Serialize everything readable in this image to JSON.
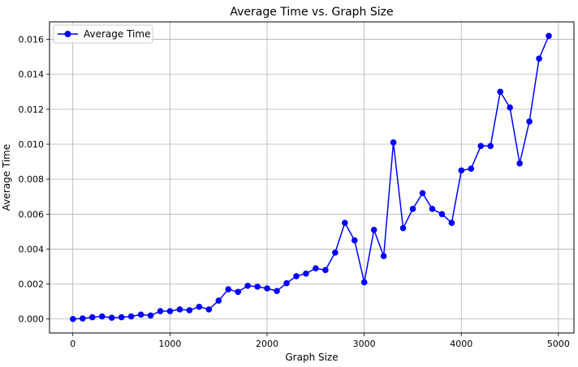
{
  "chart_data": {
    "type": "line",
    "title": "Average Time vs. Graph Size",
    "xlabel": "Graph Size",
    "ylabel": "Average Time",
    "xlim": [
      -240,
      5160
    ],
    "ylim": [
      -0.0008,
      0.017
    ],
    "xticks": [
      0,
      1000,
      2000,
      3000,
      4000,
      5000
    ],
    "xtick_labels": [
      "0",
      "1000",
      "2000",
      "3000",
      "4000",
      "5000"
    ],
    "yticks": [
      0.0,
      0.002,
      0.004,
      0.006,
      0.008,
      0.01,
      0.012,
      0.014,
      0.016
    ],
    "ytick_labels": [
      "0.000",
      "0.002",
      "0.004",
      "0.006",
      "0.008",
      "0.010",
      "0.012",
      "0.014",
      "0.016"
    ],
    "grid": true,
    "legend_position": "top-left",
    "series": [
      {
        "name": "Average Time",
        "color": "#0000ff",
        "marker": "circle",
        "x": [
          1,
          101,
          201,
          301,
          401,
          501,
          601,
          701,
          801,
          901,
          1001,
          1101,
          1201,
          1301,
          1401,
          1501,
          1601,
          1701,
          1801,
          1901,
          2001,
          2101,
          2201,
          2301,
          2401,
          2501,
          2601,
          2701,
          2801,
          2901,
          3001,
          3101,
          3201,
          3301,
          3401,
          3501,
          3601,
          3701,
          3801,
          3901,
          4001,
          4101,
          4201,
          4301,
          4401,
          4501,
          4601,
          4701,
          4801,
          4901
        ],
        "y": [
          0.0,
          3e-05,
          0.0001,
          0.00015,
          7e-05,
          0.0001,
          0.00015,
          0.00025,
          0.0002,
          0.00045,
          0.00045,
          0.00055,
          0.0005,
          0.0007,
          0.00055,
          0.00105,
          0.0017,
          0.00155,
          0.0019,
          0.00185,
          0.00175,
          0.0016,
          0.00205,
          0.00245,
          0.0026,
          0.0029,
          0.0028,
          0.0038,
          0.0055,
          0.0045,
          0.0021,
          0.0051,
          0.0036,
          0.0101,
          0.0052,
          0.0063,
          0.0072,
          0.0063,
          0.006,
          0.0055,
          0.0085,
          0.0086,
          0.0099,
          0.0099,
          0.013,
          0.0121,
          0.0089,
          0.0113,
          0.0149,
          0.0162
        ]
      }
    ]
  }
}
